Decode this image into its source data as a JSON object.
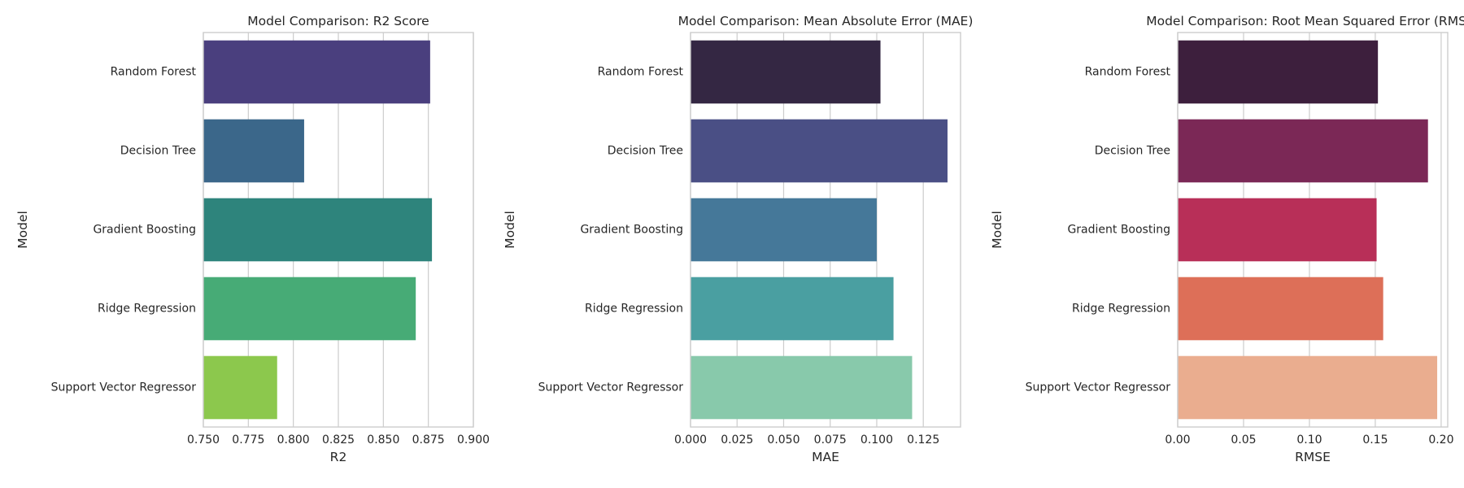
{
  "chart_data": [
    {
      "type": "bar",
      "orientation": "horizontal",
      "title": "Model Comparison: R2 Score",
      "xlabel": "R2",
      "ylabel": "Model",
      "categories": [
        "Random Forest",
        "Decision Tree",
        "Gradient Boosting",
        "Ridge Regression",
        "Support Vector Regressor"
      ],
      "values": [
        0.876,
        0.806,
        0.877,
        0.868,
        0.791
      ],
      "xlim": [
        0.75,
        0.9
      ],
      "xticks": [
        0.75,
        0.775,
        0.8,
        0.825,
        0.85,
        0.875,
        0.9
      ],
      "xtick_labels": [
        "0.750",
        "0.775",
        "0.800",
        "0.825",
        "0.850",
        "0.875",
        "0.900"
      ],
      "colors": [
        "#4a3f7e",
        "#3b678a",
        "#2e847c",
        "#47ab76",
        "#8cc84d"
      ],
      "grid": true
    },
    {
      "type": "bar",
      "orientation": "horizontal",
      "title": "Model Comparison: Mean Absolute Error (MAE)",
      "xlabel": "MAE",
      "ylabel": "Model",
      "categories": [
        "Random Forest",
        "Decision Tree",
        "Gradient Boosting",
        "Ridge Regression",
        "Support Vector Regressor"
      ],
      "values": [
        0.102,
        0.138,
        0.1,
        0.109,
        0.119
      ],
      "xlim": [
        0,
        0.145
      ],
      "xticks": [
        0,
        0.025,
        0.05,
        0.075,
        0.1,
        0.125
      ],
      "xtick_labels": [
        "0.000",
        "0.025",
        "0.050",
        "0.075",
        "0.100",
        "0.125"
      ],
      "colors": [
        "#342743",
        "#4a4f85",
        "#457899",
        "#4a9fa1",
        "#88c9ab"
      ],
      "grid": true
    },
    {
      "type": "bar",
      "orientation": "horizontal",
      "title": "Model Comparison: Root Mean Squared Error (RMSE)",
      "xlabel": "RMSE",
      "ylabel": "Model",
      "categories": [
        "Random Forest",
        "Decision Tree",
        "Gradient Boosting",
        "Ridge Regression",
        "Support Vector Regressor"
      ],
      "values": [
        0.152,
        0.19,
        0.151,
        0.156,
        0.197
      ],
      "xlim": [
        0,
        0.205
      ],
      "xticks": [
        0,
        0.05,
        0.1,
        0.15,
        0.2
      ],
      "xtick_labels": [
        "0.00",
        "0.05",
        "0.10",
        "0.15",
        "0.20"
      ],
      "colors": [
        "#3d1f3d",
        "#7b2856",
        "#b82f58",
        "#dd6f58",
        "#eaad8f"
      ],
      "grid": true
    }
  ]
}
